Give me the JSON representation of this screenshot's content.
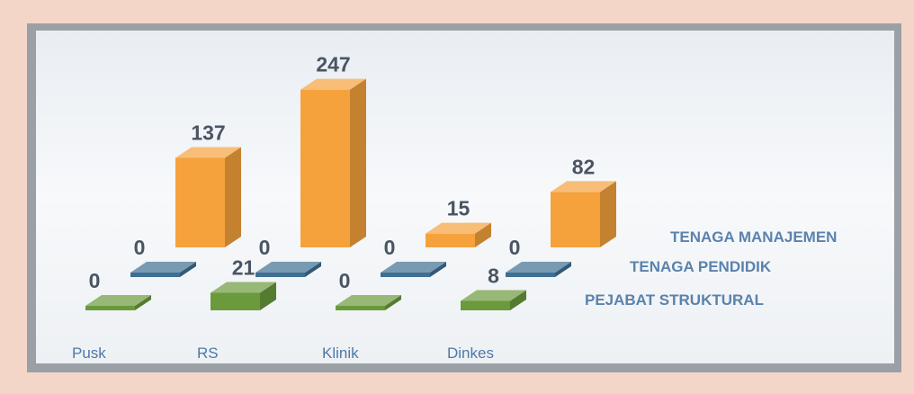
{
  "chart_data": {
    "type": "bar3d",
    "categories": [
      "Pusk",
      "RS",
      "Klinik",
      "Dinkes"
    ],
    "series": [
      {
        "name": "TENAGA MANAJEMEN",
        "color": "#f5a23c",
        "values": [
          137,
          247,
          15,
          82
        ]
      },
      {
        "name": "TENAGA PENDIDIK",
        "color": "#3f6f93",
        "values": [
          0,
          0,
          0,
          0
        ]
      },
      {
        "name": "PEJABAT STRUKTURAL",
        "color": "#6a9a3c",
        "values": [
          0,
          21,
          0,
          8
        ]
      }
    ]
  }
}
